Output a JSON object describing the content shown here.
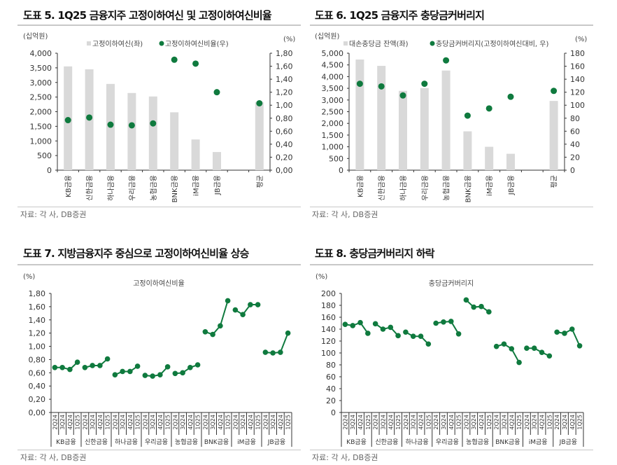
{
  "panels": [
    {
      "title": "도표 5. 1Q25 금융지주 고정이하여신 및 고정이하여신비율",
      "source": "자료: 각 사, DB증권"
    },
    {
      "title": "도표 6. 1Q25 금융지주 충당금커버리지",
      "source": "자료: 각 사, DB증권"
    },
    {
      "title": "도표 7. 지방금융지주 중심으로 고정이하여신비율 상승",
      "source": "자료: 각 사, DB증권"
    },
    {
      "title": "도표 8. 충당금커버리지 하락",
      "source": "자료: 각 사, DB증권"
    }
  ],
  "colors": {
    "bar": "#d9d9d9",
    "point": "#0f7a3e",
    "axis": "#333333",
    "rule": "#c8c8c8"
  },
  "chart_data": [
    {
      "type": "bar+scatter",
      "left_unit": "(십억원)",
      "right_unit": "(%)",
      "categories": [
        "KB금융",
        "신한금융",
        "하나금융",
        "우리금융",
        "농협금융",
        "BNK금융",
        "iM금융",
        "JB금융",
        "",
        "평균"
      ],
      "series": [
        {
          "name": "고정이하여신(좌)",
          "kind": "bar",
          "axis": "left",
          "values": [
            3550,
            3450,
            2950,
            2640,
            2520,
            1980,
            1050,
            620,
            null,
            2330
          ]
        },
        {
          "name": "고정이하여신비율(우)",
          "kind": "scatter",
          "axis": "right",
          "values": [
            0.77,
            0.81,
            0.7,
            0.69,
            0.72,
            1.7,
            1.64,
            1.2,
            null,
            1.03
          ]
        }
      ],
      "ylim_left": [
        0,
        4000
      ],
      "ylim_right": [
        0,
        1.8
      ],
      "left_ticks": [
        "0",
        "500",
        "1,000",
        "1,500",
        "2,000",
        "2,500",
        "3,000",
        "3,500",
        "4,000"
      ],
      "right_ticks": [
        "0,00",
        "0,20",
        "0,40",
        "0,60",
        "0,80",
        "1,00",
        "1,20",
        "1,40",
        "1,60",
        "1,80"
      ],
      "grid": false,
      "legend": "top"
    },
    {
      "type": "bar+scatter",
      "left_unit": "(십억원)",
      "right_unit": "(%)",
      "categories": [
        "KB금융",
        "신한금융",
        "하나금융",
        "우리금융",
        "농협금융",
        "BNK금융",
        "iM금융",
        "JB금융",
        "",
        "평균"
      ],
      "series": [
        {
          "name": "대손충당금 잔액(좌)",
          "kind": "bar",
          "axis": "left",
          "values": [
            4730,
            4460,
            3390,
            3510,
            4260,
            1660,
            1000,
            700,
            null,
            2960
          ]
        },
        {
          "name": "충당금커버리지(고정이하여신대비, 우)",
          "kind": "scatter",
          "axis": "right",
          "values": [
            133,
            129,
            115,
            133,
            169,
            84,
            95,
            113,
            null,
            122
          ]
        }
      ],
      "ylim_left": [
        0,
        5000
      ],
      "ylim_right": [
        0,
        180
      ],
      "left_ticks": [
        "0",
        "500",
        "1,000",
        "1,500",
        "2,000",
        "2,500",
        "3,000",
        "3,500",
        "4,000",
        "4,500",
        "5,000"
      ],
      "right_ticks": [
        "0",
        "20",
        "40",
        "60",
        "80",
        "100",
        "120",
        "140",
        "160",
        "180"
      ],
      "grid": false,
      "legend": "top"
    },
    {
      "type": "line",
      "title": "고정이하여신비율",
      "unit": "(%)",
      "quarters": [
        "2Q24",
        "3Q24",
        "4Q24",
        "1Q25"
      ],
      "groups": [
        "KB금융",
        "신한금융",
        "하나금융",
        "우리금융",
        "농협금융",
        "BNK금융",
        "iM금융",
        "JB금융"
      ],
      "values": [
        [
          0.68,
          0.68,
          0.65,
          0.76
        ],
        [
          0.68,
          0.71,
          0.71,
          0.81
        ],
        [
          0.57,
          0.62,
          0.62,
          0.7
        ],
        [
          0.56,
          0.55,
          0.57,
          0.69
        ],
        [
          0.59,
          0.6,
          0.68,
          0.72
        ],
        [
          1.22,
          1.18,
          1.31,
          1.69
        ],
        [
          1.55,
          1.48,
          1.63,
          1.63
        ],
        [
          0.91,
          0.9,
          0.91,
          1.2
        ]
      ],
      "ylim": [
        0,
        1.8
      ],
      "y_ticks": [
        "0,00",
        "0,20",
        "0,40",
        "0,60",
        "0,80",
        "1,00",
        "1,20",
        "1,40",
        "1,60",
        "1,80"
      ],
      "grid": false
    },
    {
      "type": "line",
      "title": "충당금커버리지",
      "unit": "(%)",
      "quarters": [
        "2Q24",
        "3Q24",
        "4Q24",
        "1Q25"
      ],
      "groups": [
        "KB금융",
        "신한금융",
        "하나금융",
        "우리금융",
        "농협금융",
        "BNK금융",
        "iM금융",
        "JB금융"
      ],
      "values": [
        [
          148,
          146,
          151,
          133
        ],
        [
          149,
          140,
          143,
          129
        ],
        [
          135,
          128,
          128,
          115
        ],
        [
          150,
          152,
          153,
          132
        ],
        [
          189,
          177,
          178,
          169
        ],
        [
          111,
          115,
          107,
          84
        ],
        [
          108,
          108,
          101,
          95
        ],
        [
          135,
          133,
          140,
          112
        ]
      ],
      "ylim": [
        0,
        200
      ],
      "y_ticks": [
        "0",
        "20",
        "40",
        "60",
        "80",
        "100",
        "120",
        "140",
        "160",
        "180",
        "200"
      ],
      "grid": false
    }
  ]
}
